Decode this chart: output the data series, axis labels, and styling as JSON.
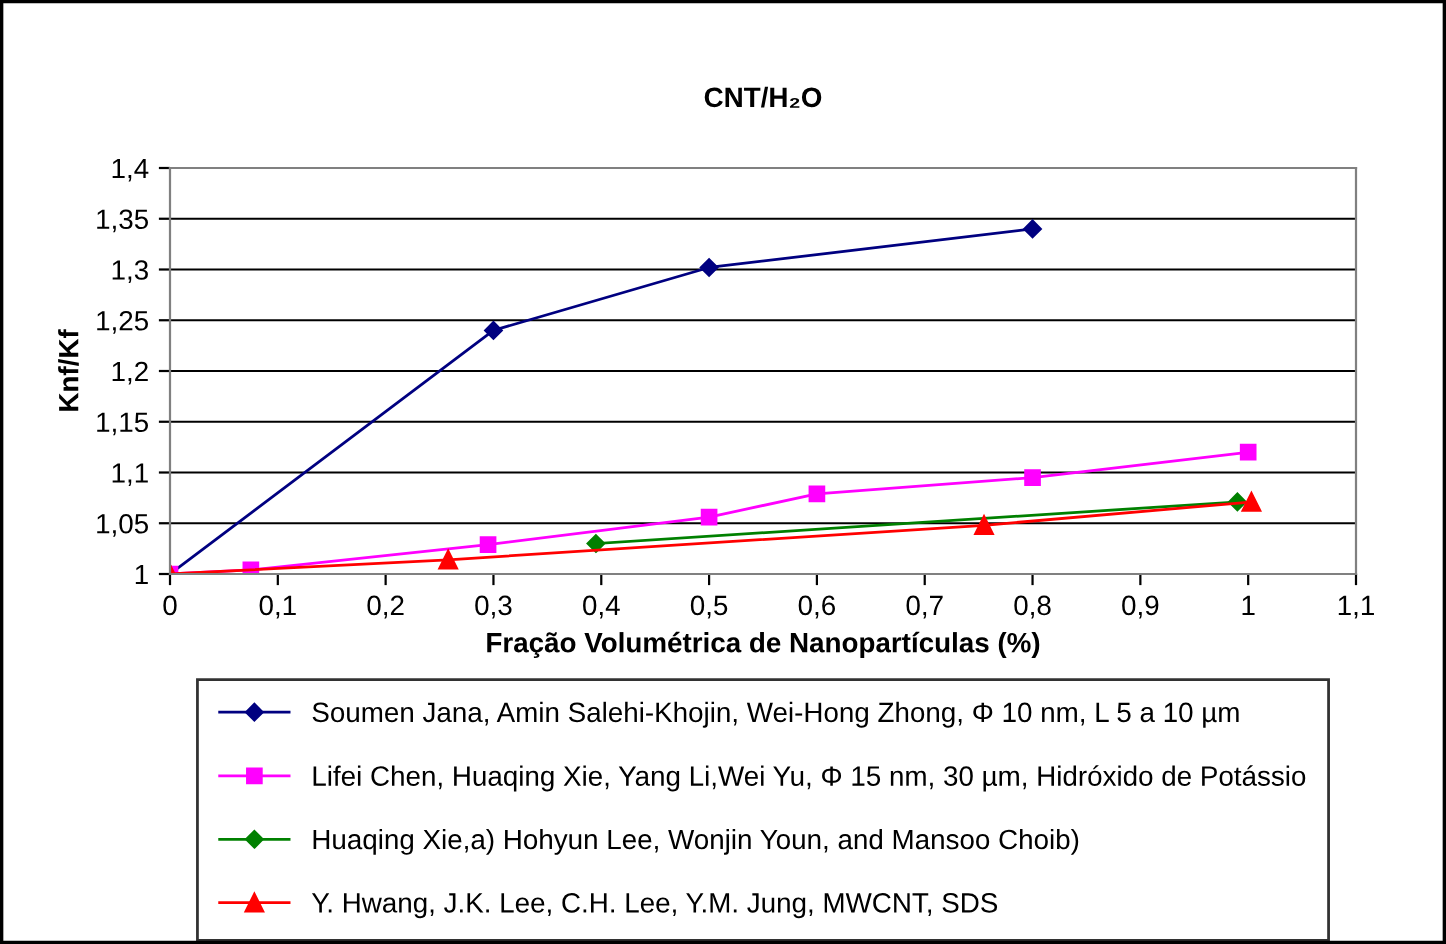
{
  "chart_data": {
    "type": "line",
    "title": "CNT/H₂O",
    "xlabel": "Fração Volumétrica de Nanopartículas (%)",
    "ylabel": "Knf/Kf",
    "series": [
      {
        "name": "Soumen Jana, Amin Salehi-Khojin, Wei-Hong Zhong, Φ 10 nm, L 5 a 10 µm",
        "color": "#000080",
        "marker": "diamond",
        "x": [
          0,
          0.3,
          0.5,
          0.8
        ],
        "values": [
          1,
          1.24,
          1.302,
          1.34
        ]
      },
      {
        "name": "Lifei Chen, Huaqing Xie, Yang Li,Wei Yu, Φ 15 nm, 30 µm, Hidróxido de Potássio",
        "color": "#ff00ff",
        "marker": "square",
        "x": [
          0,
          0.075,
          0.295,
          0.5,
          0.6,
          0.8,
          1.0
        ],
        "values": [
          1,
          1.004,
          1.029,
          1.056,
          1.079,
          1.095,
          1.12
        ]
      },
      {
        "name": "Huaqing Xie,a) Hohyun Lee, Wonjin Youn, and Mansoo Choib)",
        "color": "#008000",
        "marker": "diamond",
        "x": [
          0.395,
          0.99
        ],
        "values": [
          1.03,
          1.071
        ]
      },
      {
        "name": "Y. Hwang, J.K. Lee, C.H. Lee, Y.M. Jung, MWCNT, SDS",
        "color": "#ff0000",
        "marker": "triangle",
        "x": [
          0,
          0.258,
          0.755,
          1.003
        ],
        "values": [
          1,
          1.014,
          1.048,
          1.071
        ]
      }
    ],
    "xlim": [
      0,
      1.1
    ],
    "xticks": [
      0,
      {
        "value": 0.1,
        "label": "0,1"
      },
      {
        "value": 0.2,
        "label": "0,2"
      },
      {
        "value": 0.3,
        "label": "0,3"
      },
      {
        "value": 0.4,
        "label": "0,4"
      },
      {
        "value": 0.5,
        "label": "0,5"
      },
      {
        "value": 0.6,
        "label": "0,6"
      },
      {
        "value": 0.7,
        "label": "0,7"
      },
      {
        "value": 0.8,
        "label": "0,8"
      },
      {
        "value": 0.9,
        "label": "0,9"
      },
      1,
      {
        "value": 1.1,
        "label": "1,1"
      }
    ],
    "ylim": [
      1,
      1.4
    ],
    "yticks": [
      1,
      {
        "value": 1.05,
        "label": "1,05"
      },
      {
        "value": 1.1,
        "label": "1,1"
      },
      {
        "value": 1.15,
        "label": "1,15"
      },
      {
        "value": 1.2,
        "label": "1,2"
      },
      {
        "value": 1.25,
        "label": "1,25"
      },
      {
        "value": 1.3,
        "label": "1,3"
      },
      {
        "value": 1.35,
        "label": "1,35"
      },
      {
        "value": 1.4,
        "label": "1,4"
      }
    ],
    "grid": "y",
    "legend": "bottom"
  }
}
